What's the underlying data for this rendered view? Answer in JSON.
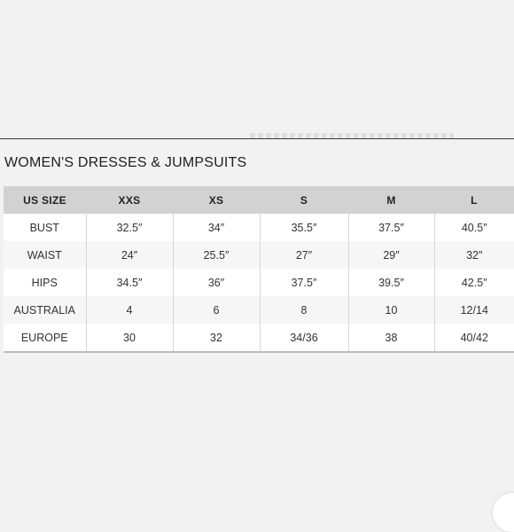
{
  "title": "WOMEN'S DRESSES & JUMPSUITS",
  "table": {
    "headers": [
      "US SIZE",
      "XXS",
      "XS",
      "S",
      "M",
      "L"
    ],
    "rows": [
      {
        "label": "BUST",
        "values": [
          "32.5″",
          "34″",
          "35.5″",
          "37.5″",
          "40.5″"
        ]
      },
      {
        "label": "WAIST",
        "values": [
          "24″",
          "25.5″",
          "27″",
          "29″",
          "32″"
        ]
      },
      {
        "label": "HIPS",
        "values": [
          "34.5″",
          "36″",
          "37.5″",
          "39.5″",
          "42.5″"
        ]
      },
      {
        "label": "AUSTRALIA",
        "values": [
          "4",
          "6",
          "8",
          "10",
          "12/14"
        ]
      },
      {
        "label": "EUROPE",
        "values": [
          "30",
          "32",
          "34/36",
          "38",
          "40/42"
        ]
      }
    ]
  }
}
